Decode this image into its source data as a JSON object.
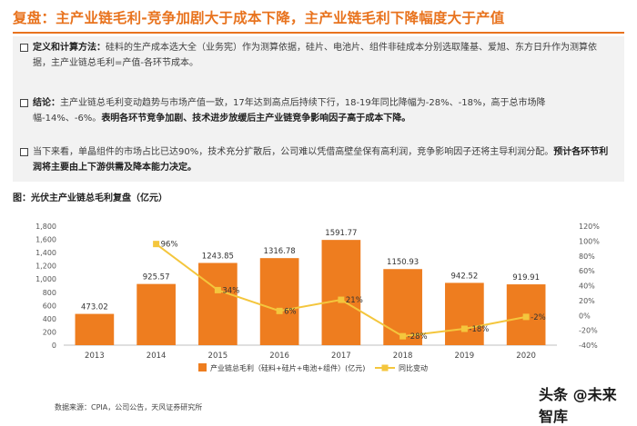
{
  "header": {
    "title": "复盘：主产业链毛利-竞争加剧大于成本下降，主产业链毛利下降幅度大于产值"
  },
  "notes": [
    {
      "label": "定义和计算方法：",
      "text": "硅料的生产成本选大全（业务宪）作为测算依据，硅片、电池片、组件非硅成本分别选取隆基、爱旭、东方日升作为测算依据，主产业链总毛利=产值-各环节成本。",
      "bold_tail": ""
    },
    {
      "label": "结论：",
      "text": "主产业链总毛利变动趋势与市场产值一致，17年达到高点后持续下行，18-19年同比降幅为-28%、-18%，高于总市场降幅-14%、-6%。",
      "bold_tail": "表明各环节竞争加剧、技术进步放缓后主产业链竞争影响因子高于成本下降。"
    },
    {
      "label": "",
      "text": "当下来看，单晶组件的市场占比已达90%，技术充分扩散后，公司难以凭借高壁垒保有高利润，竞争影响因子还将主导利润分配。",
      "bold_tail": "预计各环节利润将主要由上下游供需及降本能力决定。"
    }
  ],
  "figure_title": "图：光伏主产业链总毛利复盘（亿元）",
  "chart_data": {
    "type": "bar",
    "categories": [
      "2013",
      "2014",
      "2015",
      "2016",
      "2017",
      "2018",
      "2019",
      "2020"
    ],
    "series": [
      {
        "name": "产业链总毛利（硅料+硅片+电池+组件）(亿元)",
        "type": "bar",
        "values": [
          473.02,
          925.57,
          1243.85,
          1316.78,
          1591.77,
          1150.93,
          942.52,
          919.91
        ],
        "labels": [
          "473.02",
          "925.57",
          "1243.85",
          "1316.78",
          "1591.77",
          "1150.93",
          "942.52",
          "919.91"
        ],
        "color": "#ee7d1f"
      },
      {
        "name": "同比变动",
        "type": "line",
        "axis": "right",
        "values": [
          null,
          96,
          34,
          6,
          21,
          -28,
          -18,
          -2
        ],
        "labels": [
          "",
          "96%",
          "34%",
          "6%",
          "21%",
          "-28%",
          "-18%",
          "-2%"
        ],
        "color": "#f4c63d"
      }
    ],
    "left_axis": {
      "ylim": [
        0,
        1800
      ],
      "ticks": [
        "0",
        "200",
        "400",
        "600",
        "800",
        "1,000",
        "1,200",
        "1,400",
        "1,600",
        "1,800"
      ]
    },
    "right_axis": {
      "ylim": [
        -40,
        120
      ],
      "ticks": [
        "-40%",
        "-20%",
        "0%",
        "20%",
        "40%",
        "60%",
        "80%",
        "100%",
        "120%"
      ]
    },
    "legend_position": "bottom",
    "grid": false
  },
  "source": "数据来源：CPIA，公司公告，天风证券研究所",
  "watermark": "头条 @未来智库"
}
